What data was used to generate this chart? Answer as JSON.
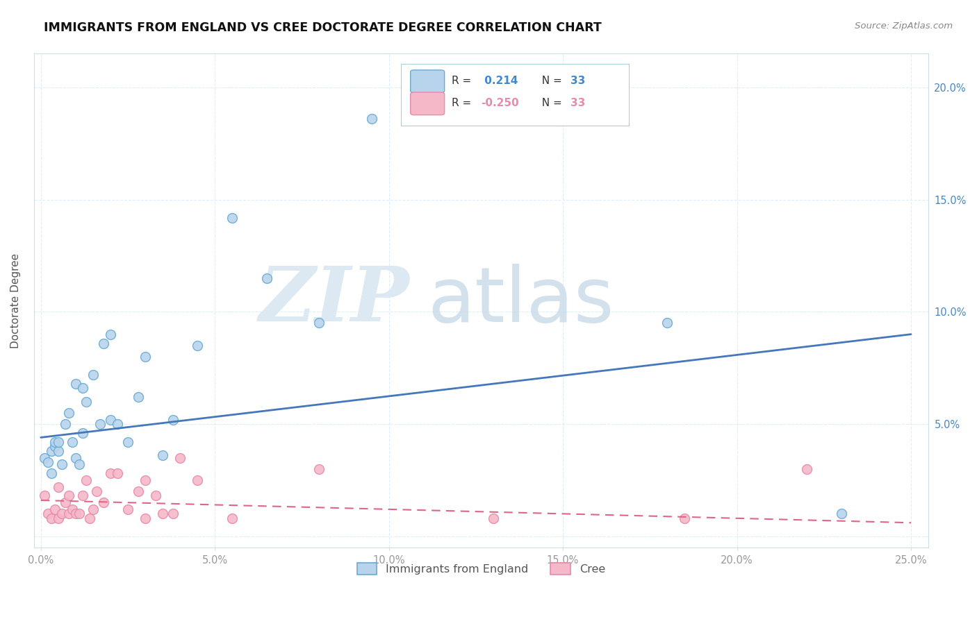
{
  "title": "IMMIGRANTS FROM ENGLAND VS CREE DOCTORATE DEGREE CORRELATION CHART",
  "source": "Source: ZipAtlas.com",
  "ylabel_label": "Doctorate Degree",
  "xlim": [
    -0.002,
    0.255
  ],
  "ylim": [
    -0.005,
    0.215
  ],
  "xticks": [
    0.0,
    0.05,
    0.1,
    0.15,
    0.2,
    0.25
  ],
  "yticks": [
    0.0,
    0.05,
    0.1,
    0.15,
    0.2
  ],
  "xtick_labels": [
    "0.0%",
    "5.0%",
    "10.0%",
    "15.0%",
    "20.0%",
    "25.0%"
  ],
  "ytick_labels_right": [
    "",
    "5.0%",
    "10.0%",
    "15.0%",
    "20.0%"
  ],
  "england_color": "#b8d4ed",
  "cree_color": "#f5b8c8",
  "england_edge_color": "#6aaad4",
  "cree_edge_color": "#e88aaa",
  "england_line_color": "#4477bb",
  "cree_line_color": "#dd6688",
  "right_tick_color": "#4488cc",
  "grid_color": "#ddeeff",
  "background_color": "#ffffff",
  "title_color": "#111111",
  "source_color": "#888888",
  "ylabel_color": "#555555",
  "england_x": [
    0.001,
    0.002,
    0.003,
    0.003,
    0.004,
    0.004,
    0.005,
    0.005,
    0.006,
    0.007,
    0.008,
    0.009,
    0.01,
    0.01,
    0.011,
    0.012,
    0.012,
    0.013,
    0.015,
    0.017,
    0.018,
    0.02,
    0.02,
    0.022,
    0.025,
    0.028,
    0.03,
    0.035,
    0.038,
    0.045,
    0.055,
    0.065,
    0.08,
    0.095,
    0.18,
    0.23
  ],
  "england_y": [
    0.035,
    0.033,
    0.038,
    0.028,
    0.04,
    0.042,
    0.038,
    0.042,
    0.032,
    0.05,
    0.055,
    0.042,
    0.035,
    0.068,
    0.032,
    0.046,
    0.066,
    0.06,
    0.072,
    0.05,
    0.086,
    0.09,
    0.052,
    0.05,
    0.042,
    0.062,
    0.08,
    0.036,
    0.052,
    0.085,
    0.142,
    0.115,
    0.095,
    0.186,
    0.095,
    0.01
  ],
  "cree_x": [
    0.001,
    0.002,
    0.003,
    0.004,
    0.005,
    0.005,
    0.006,
    0.007,
    0.008,
    0.008,
    0.009,
    0.01,
    0.011,
    0.012,
    0.013,
    0.014,
    0.015,
    0.016,
    0.018,
    0.02,
    0.022,
    0.025,
    0.028,
    0.03,
    0.03,
    0.033,
    0.035,
    0.038,
    0.04,
    0.045,
    0.055,
    0.08,
    0.13,
    0.185,
    0.22
  ],
  "cree_y": [
    0.018,
    0.01,
    0.008,
    0.012,
    0.008,
    0.022,
    0.01,
    0.015,
    0.01,
    0.018,
    0.012,
    0.01,
    0.01,
    0.018,
    0.025,
    0.008,
    0.012,
    0.02,
    0.015,
    0.028,
    0.028,
    0.012,
    0.02,
    0.025,
    0.008,
    0.018,
    0.01,
    0.01,
    0.035,
    0.025,
    0.008,
    0.03,
    0.008,
    0.008,
    0.03
  ],
  "england_trend_x": [
    0.0,
    0.25
  ],
  "england_trend_y": [
    0.044,
    0.09
  ],
  "cree_trend_x": [
    0.0,
    0.25
  ],
  "cree_trend_y": [
    0.016,
    0.006
  ],
  "scatter_size": 100
}
